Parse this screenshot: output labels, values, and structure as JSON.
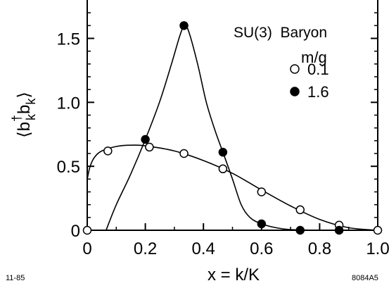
{
  "chart_data": {
    "type": "scatter",
    "title": "",
    "xlabel": "x = k/K",
    "ylabel": "⟨b†kbk⟩",
    "xlim": [
      0,
      1.0
    ],
    "ylim": [
      0,
      1.8
    ],
    "x_ticks": [
      0,
      0.2,
      0.4,
      0.6,
      0.8,
      1.0
    ],
    "x_tick_labels": [
      "0",
      "0.2",
      "0.4",
      "0.6",
      "0.8",
      "1.0"
    ],
    "y_ticks": [
      0,
      0.5,
      1.0,
      1.5
    ],
    "y_tick_labels": [
      "0",
      "0.5",
      "1.0",
      "1.5"
    ],
    "grid": false,
    "legend_placement": "top-right",
    "legend_heading": "SU(3)  Baryon",
    "legend_title": "m/g",
    "series": [
      {
        "name": "0.1",
        "marker": "open-circle",
        "points": [
          {
            "x": 0.0,
            "y": 0.0
          },
          {
            "x": 0.071,
            "y": 0.62
          },
          {
            "x": 0.214,
            "y": 0.65
          },
          {
            "x": 0.333,
            "y": 0.6
          },
          {
            "x": 0.467,
            "y": 0.48
          },
          {
            "x": 0.6,
            "y": 0.3
          },
          {
            "x": 0.733,
            "y": 0.16
          },
          {
            "x": 0.867,
            "y": 0.04
          },
          {
            "x": 1.0,
            "y": 0.0
          }
        ],
        "curve": [
          [
            0.0,
            0.4
          ],
          [
            0.01,
            0.5
          ],
          [
            0.025,
            0.57
          ],
          [
            0.05,
            0.62
          ],
          [
            0.1,
            0.655
          ],
          [
            0.15,
            0.665
          ],
          [
            0.2,
            0.66
          ],
          [
            0.3,
            0.62
          ],
          [
            0.4,
            0.545
          ],
          [
            0.5,
            0.445
          ],
          [
            0.6,
            0.315
          ],
          [
            0.7,
            0.19
          ],
          [
            0.8,
            0.085
          ],
          [
            0.9,
            0.02
          ],
          [
            1.0,
            0.0
          ]
        ]
      },
      {
        "name": "1.6",
        "marker": "filled-circle",
        "points": [
          {
            "x": 0.2,
            "y": 0.71
          },
          {
            "x": 0.333,
            "y": 1.6
          },
          {
            "x": 0.467,
            "y": 0.61
          },
          {
            "x": 0.6,
            "y": 0.05
          },
          {
            "x": 0.733,
            "y": 0.0
          },
          {
            "x": 0.867,
            "y": 0.0
          }
        ],
        "curve": [
          [
            0.065,
            0.0
          ],
          [
            0.1,
            0.2
          ],
          [
            0.15,
            0.44
          ],
          [
            0.2,
            0.71
          ],
          [
            0.25,
            1.01
          ],
          [
            0.29,
            1.3
          ],
          [
            0.32,
            1.53
          ],
          [
            0.335,
            1.6
          ],
          [
            0.35,
            1.55
          ],
          [
            0.38,
            1.3
          ],
          [
            0.41,
            1.0
          ],
          [
            0.44,
            0.78
          ],
          [
            0.467,
            0.61
          ],
          [
            0.5,
            0.4
          ],
          [
            0.53,
            0.2
          ],
          [
            0.56,
            0.1
          ],
          [
            0.6,
            0.05
          ],
          [
            0.65,
            0.02
          ],
          [
            0.7,
            0.005
          ],
          [
            0.8,
            0.0
          ],
          [
            0.9,
            0.0
          ]
        ]
      }
    ],
    "annotations": {
      "bottom_left": "11-85",
      "bottom_right": "8084A5"
    }
  }
}
